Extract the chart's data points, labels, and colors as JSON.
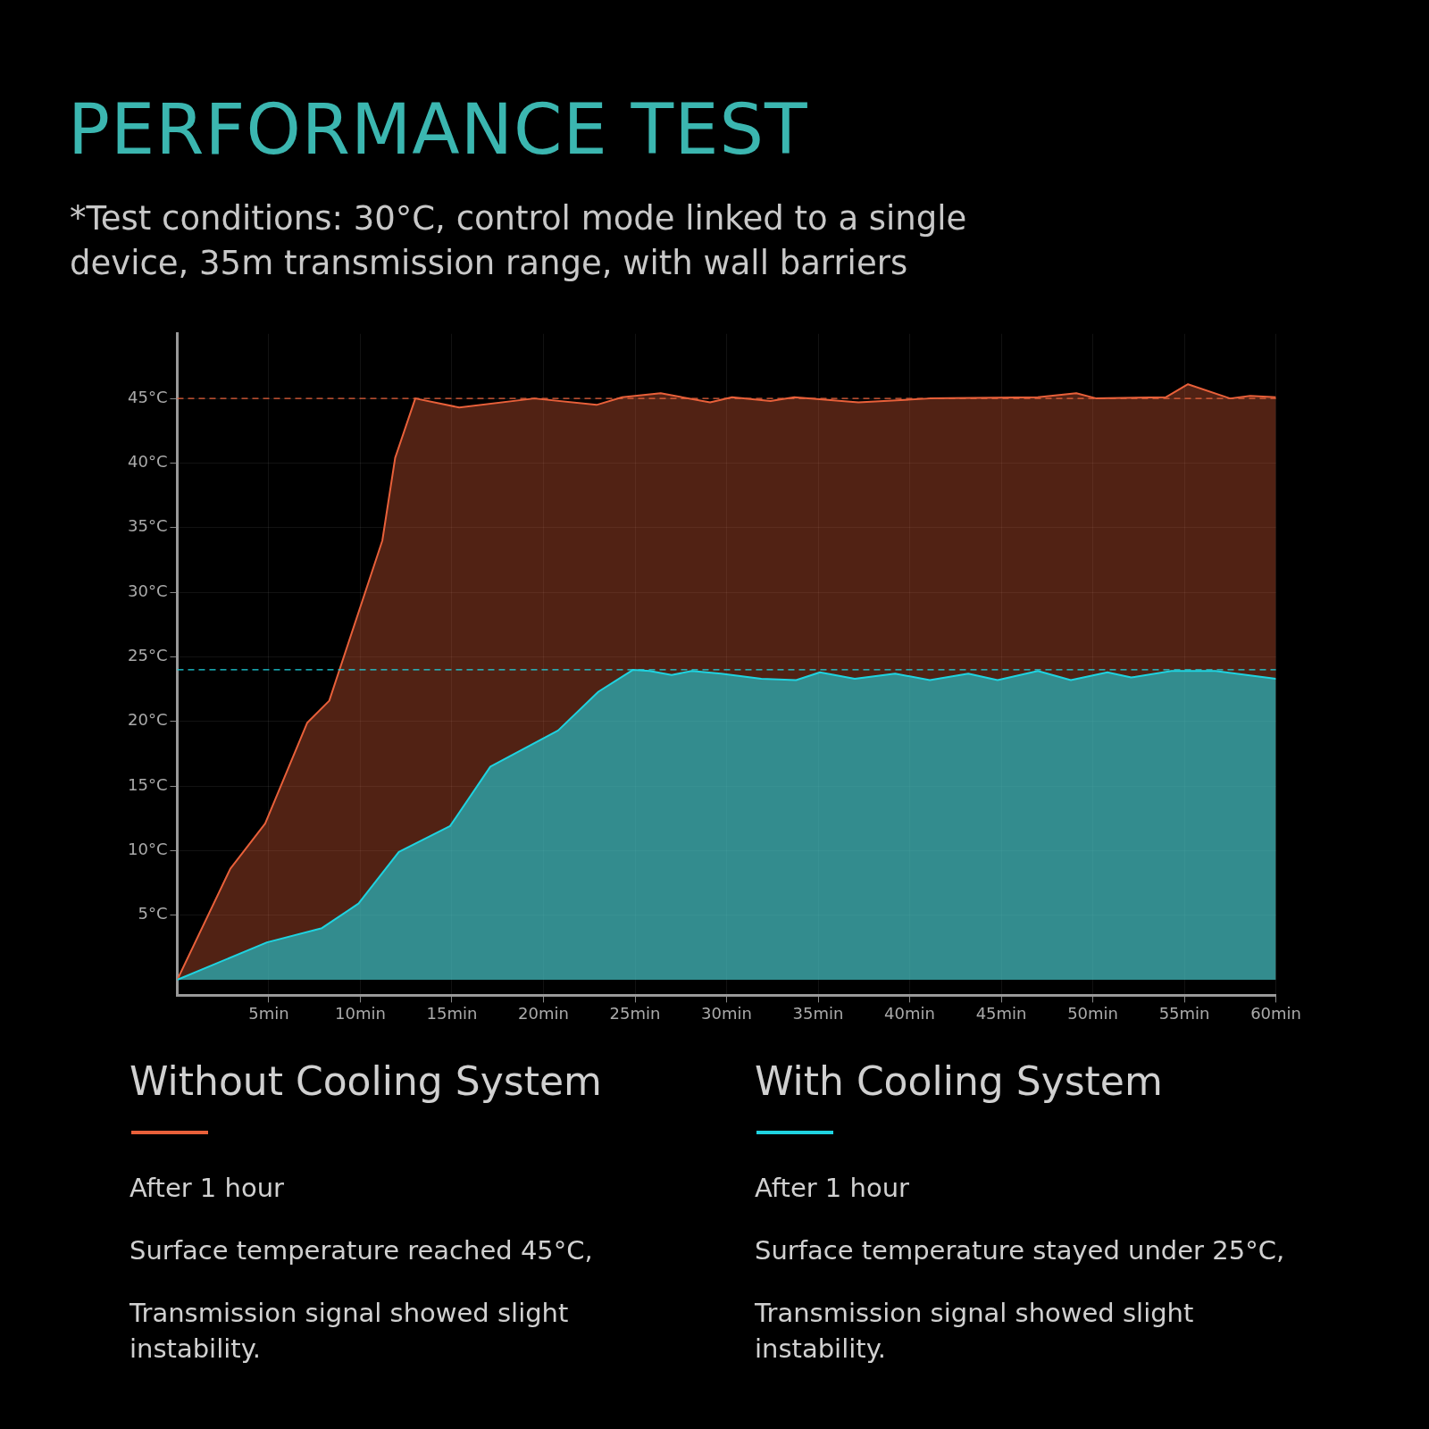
{
  "chart_data": {
    "type": "area",
    "title": "PERFORMANCE TEST",
    "subtitle": "*Test conditions: 30°C, control mode linked to a single device, 35m transmission range, with wall barriers",
    "series": [
      {
        "name": "Without Cooling System",
        "color": "#e8603a",
        "x": [
          0,
          2.9,
          4.8,
          7.1,
          8.3,
          11.2,
          11.9,
          13.0,
          15.4,
          19.5,
          22.9,
          24.3,
          26.4,
          29.1,
          30.3,
          32.4,
          33.7,
          37.2,
          41.1,
          47.0,
          49.1,
          50.2,
          54.0,
          55.2,
          57.5,
          58.6,
          60
        ],
        "values": [
          0,
          8.6,
          12.1,
          19.9,
          21.6,
          34.0,
          40.4,
          45.0,
          44.3,
          45.0,
          44.5,
          45.1,
          45.4,
          44.7,
          45.1,
          44.8,
          45.1,
          44.7,
          45.0,
          45.1,
          45.4,
          45.0,
          45.1,
          46.1,
          45.0,
          45.2,
          45.1
        ]
      },
      {
        "name": "With Cooling System",
        "color": "#1fd3e0",
        "x": [
          0,
          4.9,
          7.9,
          9.9,
          12.1,
          14.9,
          17.1,
          20.8,
          23.0,
          24.9,
          25.8,
          27.0,
          28.1,
          29.7,
          31.9,
          33.8,
          35.1,
          37.0,
          39.2,
          41.1,
          43.2,
          44.8,
          47.0,
          48.8,
          50.8,
          52.1,
          54.3,
          56.7,
          60
        ],
        "values": [
          0,
          2.9,
          4.0,
          5.9,
          9.9,
          11.9,
          16.5,
          19.3,
          22.3,
          24.0,
          23.9,
          23.6,
          23.9,
          23.7,
          23.3,
          23.2,
          23.8,
          23.3,
          23.7,
          23.2,
          23.7,
          23.2,
          23.9,
          23.2,
          23.8,
          23.4,
          23.9,
          23.9,
          23.3
        ]
      }
    ],
    "xlim": [
      0,
      60
    ],
    "xticks": [
      {
        "value": 5,
        "label": "5min"
      },
      {
        "value": 10,
        "label": "10min"
      },
      {
        "value": 15,
        "label": "15min"
      },
      {
        "value": 20,
        "label": "20min"
      },
      {
        "value": 25,
        "label": "25min"
      },
      {
        "value": 30,
        "label": "30min"
      },
      {
        "value": 35,
        "label": "35min"
      },
      {
        "value": 40,
        "label": "40min"
      },
      {
        "value": 45,
        "label": "45min"
      },
      {
        "value": 50,
        "label": "50min"
      },
      {
        "value": 55,
        "label": "55min"
      },
      {
        "value": 60,
        "label": "60min"
      }
    ],
    "ylim": [
      -1.2,
      50
    ],
    "yticks": [
      {
        "value": 5,
        "label": "5°C"
      },
      {
        "value": 10,
        "label": "10°C"
      },
      {
        "value": 15,
        "label": "15°C"
      },
      {
        "value": 20,
        "label": "20°C"
      },
      {
        "value": 25,
        "label": "25°C"
      },
      {
        "value": 30,
        "label": "30°C"
      },
      {
        "value": 35,
        "label": "35°C"
      },
      {
        "value": 40,
        "label": "40°C"
      },
      {
        "value": 45,
        "label": "45°C"
      }
    ],
    "ref_lines": [
      {
        "axis": "y",
        "value": 45,
        "color": "#e8603a",
        "line_style": "dashed"
      },
      {
        "axis": "y",
        "value": 24,
        "color": "#1fd3e0",
        "line_style": "dashed"
      }
    ],
    "grid": true,
    "legend": "bottom",
    "annotations": [
      "After 1 hour",
      "Surface temperature reached 45°C,",
      "Transmission signal showed slight instability.",
      "After 1 hour",
      "Surface temperature stayed under 25°C,",
      "Transmission signal showed slight instability."
    ]
  }
}
